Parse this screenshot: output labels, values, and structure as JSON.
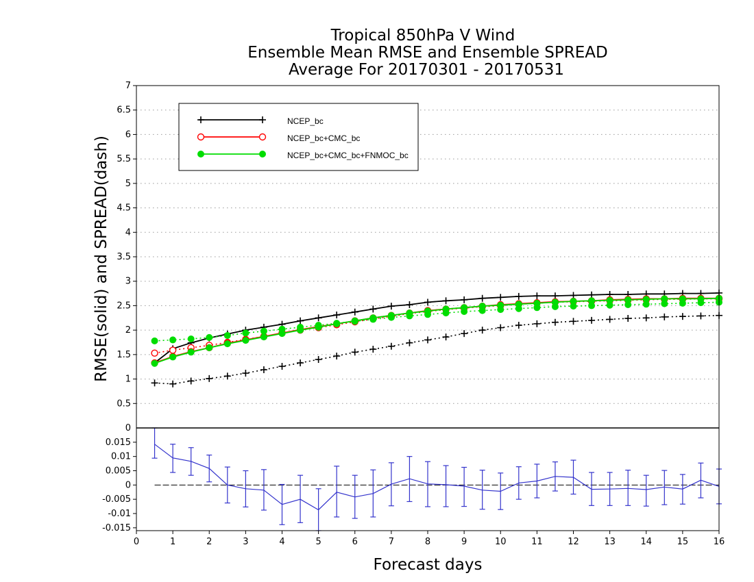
{
  "chart_data": {
    "type": "line",
    "title_lines": [
      "Tropical 850hPa V Wind",
      "Ensemble Mean RMSE and Ensemble SPREAD",
      "Average For 20170301 - 20170531"
    ],
    "xlabel": "Forecast days",
    "ylabel": "RMSE(solid)  and  SPREAD(dash)",
    "xlim": [
      0,
      16
    ],
    "ylim": [
      0,
      7
    ],
    "x_ticks": [
      "0",
      "1",
      "2",
      "3",
      "4",
      "5",
      "6",
      "7",
      "8",
      "9",
      "10",
      "11",
      "12",
      "13",
      "14",
      "15",
      "16"
    ],
    "y_ticks": [
      "0.5",
      "1",
      "1.5",
      "2",
      "2.5",
      "3",
      "3.5",
      "4",
      "4.5",
      "5",
      "5.5",
      "6",
      "6.5",
      "7"
    ],
    "grid": true,
    "legend_position": "top-left",
    "x": [
      0.5,
      1,
      1.5,
      2,
      2.5,
      3,
      3.5,
      4,
      4.5,
      5,
      5.5,
      6,
      6.5,
      7,
      7.5,
      8,
      8.5,
      9,
      9.5,
      10,
      10.5,
      11,
      11.5,
      12,
      12.5,
      13,
      13.5,
      14,
      14.5,
      15,
      15.5,
      16
    ],
    "series": [
      {
        "name": "NCEP_bc",
        "color": "#000000",
        "marker": "plus",
        "rmse": [
          1.33,
          1.62,
          1.74,
          1.84,
          1.92,
          2.0,
          2.06,
          2.12,
          2.19,
          2.25,
          2.31,
          2.37,
          2.43,
          2.49,
          2.52,
          2.57,
          2.6,
          2.62,
          2.65,
          2.67,
          2.69,
          2.7,
          2.7,
          2.71,
          2.72,
          2.73,
          2.73,
          2.74,
          2.74,
          2.75,
          2.75,
          2.76
        ],
        "spread": [
          0.92,
          0.9,
          0.96,
          1.01,
          1.06,
          1.12,
          1.19,
          1.26,
          1.33,
          1.4,
          1.47,
          1.55,
          1.61,
          1.67,
          1.74,
          1.8,
          1.86,
          1.93,
          2.0,
          2.05,
          2.1,
          2.13,
          2.16,
          2.18,
          2.2,
          2.22,
          2.24,
          2.25,
          2.27,
          2.28,
          2.29,
          2.3
        ]
      },
      {
        "name": "NCEP_bc+CMC_bc",
        "color": "#ff0000",
        "marker": "open-circle",
        "rmse": [
          1.33,
          1.46,
          1.56,
          1.64,
          1.73,
          1.8,
          1.87,
          1.94,
          2.01,
          2.07,
          2.13,
          2.19,
          2.25,
          2.3,
          2.35,
          2.4,
          2.43,
          2.46,
          2.49,
          2.52,
          2.54,
          2.56,
          2.58,
          2.59,
          2.6,
          2.62,
          2.63,
          2.64,
          2.64,
          2.65,
          2.65,
          2.65
        ],
        "spread": [
          1.53,
          1.59,
          1.64,
          1.69,
          1.75,
          1.81,
          1.87,
          1.94,
          2.0,
          2.05,
          2.11,
          2.17,
          2.23,
          2.28,
          2.34,
          2.38,
          2.42,
          2.45,
          2.48,
          2.5,
          2.53,
          2.55,
          2.57,
          2.58,
          2.59,
          2.6,
          2.61,
          2.62,
          2.63,
          2.63,
          2.64,
          2.64
        ]
      },
      {
        "name": "NCEP_bc+CMC_bc+FNMOC_bc",
        "color": "#00dd00",
        "marker": "filled-circle",
        "rmse": [
          1.32,
          1.45,
          1.55,
          1.64,
          1.72,
          1.79,
          1.86,
          1.93,
          2.0,
          2.06,
          2.13,
          2.19,
          2.25,
          2.3,
          2.35,
          2.39,
          2.43,
          2.46,
          2.49,
          2.51,
          2.53,
          2.55,
          2.57,
          2.59,
          2.6,
          2.61,
          2.62,
          2.63,
          2.64,
          2.64,
          2.64,
          2.65
        ],
        "spread": [
          1.78,
          1.8,
          1.82,
          1.85,
          1.89,
          1.94,
          1.98,
          2.02,
          2.06,
          2.1,
          2.14,
          2.18,
          2.22,
          2.26,
          2.29,
          2.32,
          2.35,
          2.38,
          2.4,
          2.42,
          2.44,
          2.46,
          2.48,
          2.49,
          2.5,
          2.51,
          2.52,
          2.53,
          2.54,
          2.55,
          2.56,
          2.57
        ]
      }
    ],
    "difference_panel": {
      "ylim": [
        -0.016,
        0.02
      ],
      "y_ticks": [
        "-0.015",
        "-0.01",
        "-0.005",
        "0",
        "0.005",
        "0.01",
        "0.015"
      ],
      "color": "#3333cc",
      "values": [
        0.0143,
        0.0095,
        0.0083,
        0.0058,
        0.0,
        -0.0013,
        -0.0018,
        -0.0068,
        -0.005,
        -0.0087,
        -0.0025,
        -0.0042,
        -0.003,
        0.0003,
        0.0022,
        0.0004,
        0.0001,
        -0.0004,
        -0.0018,
        -0.0022,
        0.0007,
        0.0014,
        0.003,
        0.0027,
        -0.0015,
        -0.0014,
        -0.0012,
        -0.0016,
        -0.0007,
        -0.0014,
        0.0017,
        -0.0005
      ],
      "err_low": [
        0.0094,
        0.0044,
        0.0034,
        0.0011,
        -0.0063,
        -0.0077,
        -0.0088,
        -0.0139,
        -0.0132,
        -0.016,
        -0.0112,
        -0.0117,
        -0.0112,
        -0.0073,
        -0.0058,
        -0.0076,
        -0.0076,
        -0.0075,
        -0.0085,
        -0.0086,
        -0.005,
        -0.0045,
        -0.0021,
        -0.0032,
        -0.0072,
        -0.0072,
        -0.0072,
        -0.0074,
        -0.0069,
        -0.0067,
        -0.0045,
        -0.0066
      ],
      "err_high": [
        0.02,
        0.0143,
        0.0131,
        0.0105,
        0.0063,
        0.005,
        0.0054,
        0.0002,
        0.0034,
        -0.0013,
        0.0066,
        0.0034,
        0.0053,
        0.0078,
        0.01,
        0.0082,
        0.0068,
        0.0062,
        0.0052,
        0.0042,
        0.0064,
        0.0073,
        0.0081,
        0.0087,
        0.0044,
        0.0044,
        0.0052,
        0.0034,
        0.0051,
        0.0037,
        0.0077,
        0.0056
      ]
    }
  }
}
